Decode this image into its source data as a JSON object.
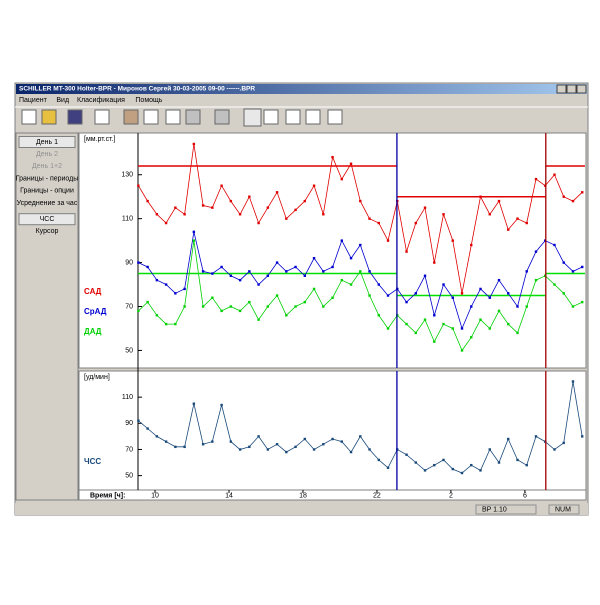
{
  "window": {
    "title": "SCHILLER MT-300 Holter-BPR - Миронов Сергей 30-03-2005 09-00 ------.BPR"
  },
  "menu": [
    "Пациент",
    "Вид",
    "Класификация",
    "Помощь"
  ],
  "sidebar": [
    {
      "label": "День 1",
      "enabled": true,
      "button": true
    },
    {
      "label": "День 2",
      "enabled": false,
      "button": false
    },
    {
      "label": "День 1+2",
      "enabled": false,
      "button": false
    },
    {
      "label": "Границы - периоды",
      "enabled": true,
      "button": false
    },
    {
      "label": "Границы - опции",
      "enabled": true,
      "button": false
    },
    {
      "label": "Усреднение за час",
      "enabled": true,
      "button": false
    },
    {
      "label": "ЧСС",
      "enabled": true,
      "button": true
    },
    {
      "label": "Курсор",
      "enabled": true,
      "button": false
    }
  ],
  "status": [
    "BP 1.10",
    "NUM"
  ],
  "chart_data": [
    {
      "type": "line",
      "ylabel": "[мм.рт.ст.]",
      "x": [
        9.1,
        9.6,
        10.1,
        10.6,
        11.1,
        11.6,
        12.1,
        12.6,
        13.1,
        13.6,
        14.1,
        14.6,
        15.1,
        15.6,
        16.1,
        16.6,
        17.1,
        17.6,
        18.1,
        18.6,
        19.1,
        19.6,
        20.1,
        20.6,
        21.1,
        21.6,
        22.1,
        22.6,
        23.1,
        23.6,
        24.1,
        24.6,
        25.1,
        25.6,
        26.1,
        26.6,
        27.1,
        27.6,
        28.1,
        28.6,
        29.1,
        29.6,
        30.1,
        30.6,
        31.1,
        31.6,
        32.1,
        32.6,
        33.1
      ],
      "xlim": [
        9.08,
        33.25
      ],
      "ylim": [
        42,
        149
      ],
      "yticks": [
        50,
        70,
        90,
        110,
        130
      ],
      "series": [
        {
          "name": "САД",
          "color": "#e00000",
          "values": [
            125,
            118,
            112,
            108,
            115,
            112,
            144,
            116,
            115,
            125,
            118,
            112,
            120,
            108,
            115,
            122,
            110,
            114,
            118,
            125,
            112,
            138,
            128,
            135,
            118,
            110,
            108,
            100,
            118,
            95,
            108,
            115,
            90,
            112,
            100,
            76,
            98,
            120,
            112,
            118,
            105,
            110,
            108,
            128,
            125,
            130,
            120,
            118,
            122
          ]
        },
        {
          "name": "СрАД",
          "color": "#0000d0",
          "values": [
            90,
            88,
            82,
            80,
            76,
            78,
            104,
            86,
            85,
            88,
            84,
            82,
            86,
            80,
            84,
            90,
            86,
            88,
            84,
            92,
            86,
            88,
            100,
            92,
            98,
            86,
            80,
            75,
            78,
            72,
            76,
            84,
            66,
            80,
            74,
            60,
            70,
            78,
            74,
            82,
            76,
            70,
            86,
            95,
            100,
            98,
            90,
            86,
            88
          ]
        },
        {
          "name": "ДАД",
          "color": "#00d000",
          "values": [
            68,
            72,
            66,
            62,
            62,
            70,
            100,
            70,
            74,
            68,
            70,
            68,
            72,
            64,
            70,
            75,
            66,
            70,
            72,
            78,
            70,
            74,
            82,
            80,
            86,
            75,
            66,
            60,
            66,
            62,
            58,
            64,
            54,
            62,
            60,
            50,
            56,
            64,
            60,
            68,
            62,
            58,
            70,
            82,
            84,
            80,
            76,
            70,
            72
          ]
        }
      ],
      "thresholds": [
        {
          "color": "#e00000",
          "x": [
            9.08,
            23.08
          ],
          "value": 134
        },
        {
          "color": "#e00000",
          "x": [
            23.08,
            31.13
          ],
          "value": 120
        },
        {
          "color": "#e00000",
          "x": [
            31.13,
            33.25
          ],
          "value": 134
        },
        {
          "color": "#00e000",
          "x": [
            9.08,
            23.08
          ],
          "value": 85
        },
        {
          "color": "#00e000",
          "x": [
            23.08,
            31.13
          ],
          "value": 75
        },
        {
          "color": "#00e000",
          "x": [
            31.13,
            33.25
          ],
          "value": 85
        }
      ],
      "markers": [
        {
          "x": 23.08,
          "color": "#0000a0"
        },
        {
          "x": 31.13,
          "color": "#a00000"
        }
      ]
    },
    {
      "type": "line",
      "ylabel": "[уд/мин]",
      "xlabel": "Время [ч]:",
      "x": [
        9.1,
        9.6,
        10.1,
        10.6,
        11.1,
        11.6,
        12.1,
        12.6,
        13.1,
        13.6,
        14.1,
        14.6,
        15.1,
        15.6,
        16.1,
        16.6,
        17.1,
        17.6,
        18.1,
        18.6,
        19.1,
        19.6,
        20.1,
        20.6,
        21.1,
        21.6,
        22.1,
        22.6,
        23.1,
        23.6,
        24.1,
        24.6,
        25.1,
        25.6,
        26.1,
        26.6,
        27.1,
        27.6,
        28.1,
        28.6,
        29.1,
        29.6,
        30.1,
        30.6,
        31.1,
        31.6,
        32.1,
        32.6,
        33.1
      ],
      "xlim": [
        9.08,
        33.25
      ],
      "xticks": [
        10,
        14,
        18,
        22,
        {
          "value": 26,
          "label": "2"
        },
        {
          "value": 30,
          "label": "6"
        }
      ],
      "ylim": [
        39,
        130
      ],
      "yticks": [
        50,
        70,
        90,
        110
      ],
      "series": [
        {
          "name": "ЧСС",
          "color": "#1a4a7a",
          "values": [
            92,
            86,
            80,
            76,
            72,
            72,
            105,
            74,
            76,
            104,
            76,
            70,
            72,
            80,
            70,
            74,
            68,
            72,
            78,
            70,
            74,
            78,
            76,
            68,
            80,
            70,
            62,
            56,
            70,
            66,
            60,
            54,
            58,
            62,
            55,
            52,
            58,
            54,
            70,
            60,
            78,
            62,
            58,
            80,
            76,
            70,
            75,
            122,
            80
          ]
        }
      ],
      "markers": [
        {
          "x": 23.08,
          "color": "#0000a0"
        },
        {
          "x": 31.13,
          "color": "#a00000"
        }
      ]
    }
  ]
}
